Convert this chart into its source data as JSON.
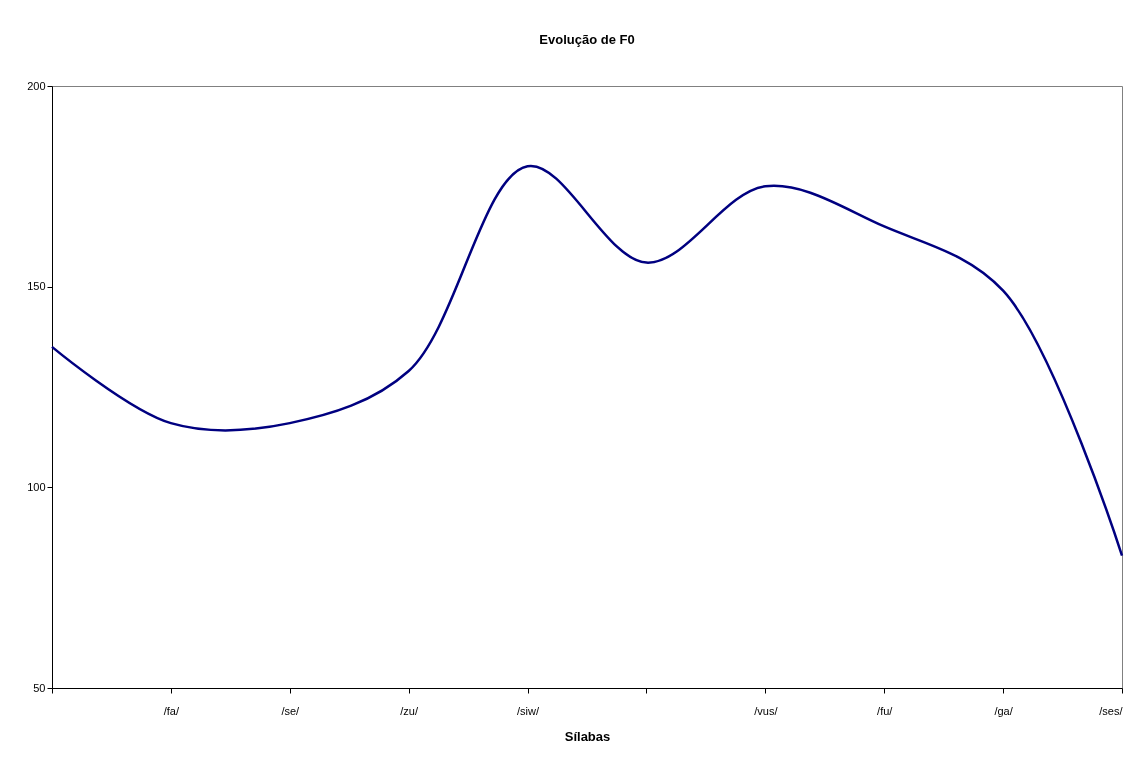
{
  "chart_data": {
    "type": "line",
    "title": "Evolução de F0",
    "xlabel": "Sílabas",
    "categories": [
      null,
      "/fa/",
      "/se/",
      "/zu/",
      "/siw/",
      null,
      "/vus/",
      "/fu/",
      "/ga/",
      "/ses/"
    ],
    "series": [
      {
        "color": "#000080",
        "values": [
          135,
          116,
          116,
          129,
          180,
          156,
          175,
          165,
          149,
          83
        ]
      }
    ],
    "ylim": [
      50,
      200
    ],
    "yticks": [
      50,
      100,
      150,
      200
    ],
    "grid": false,
    "legend": false,
    "marker": "none",
    "line_style": "solid"
  }
}
